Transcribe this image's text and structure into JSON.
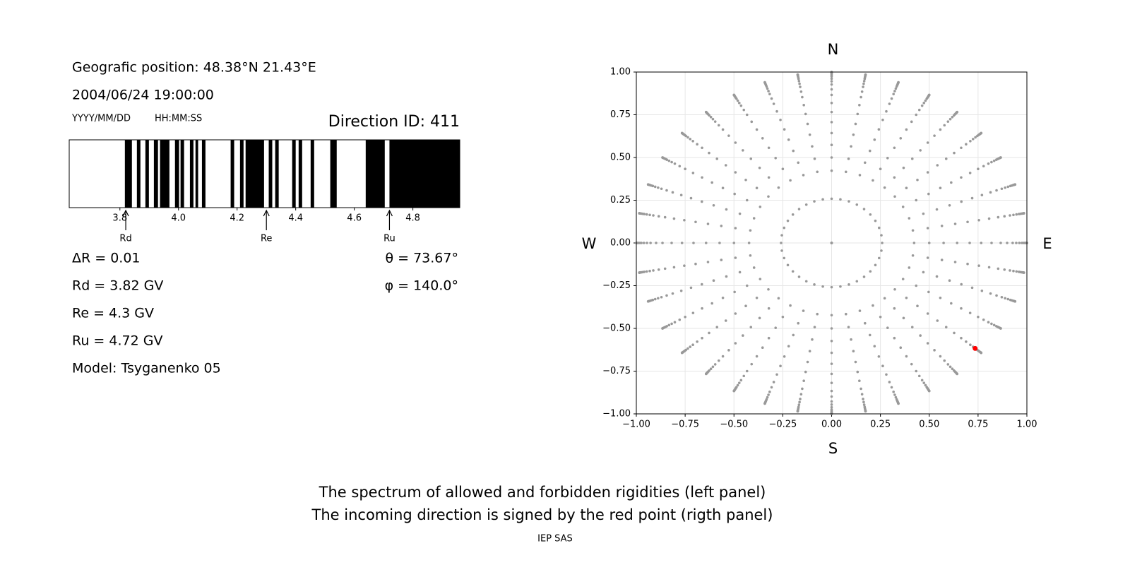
{
  "info": {
    "position": "Geografic position: 48.38°N 21.43°E",
    "datetime": "2004/06/24 19:00:00",
    "date_format": "YYYY/MM/DD",
    "time_format": "HH:MM:SS",
    "direction_id": "Direction ID: 411",
    "delta_r": "ΔR = 0.01",
    "rd": "Rd = 3.82 GV",
    "re": "Re = 4.3 GV",
    "ru": "Ru = 4.72 GV",
    "model": "Model: Tsyganenko 05",
    "theta": "θ = 73.67°",
    "phi": "φ = 140.0°"
  },
  "chart_data": [
    {
      "type": "spectrum",
      "color": "#000000",
      "xlim": [
        3.627,
        4.96
      ],
      "xticks": [
        3.8,
        {
          "value": 4,
          "label": "4.0"
        },
        4.2,
        4.4,
        4.6,
        4.8
      ],
      "forbidden": [
        [
          3.817,
          3.841
        ],
        [
          3.858,
          3.87
        ],
        [
          3.887,
          3.899
        ],
        [
          3.916,
          3.93
        ],
        [
          3.937,
          3.969
        ],
        [
          3.988,
          4.002
        ],
        [
          4.007,
          4.019
        ],
        [
          4.039,
          4.051
        ],
        [
          4.058,
          4.067
        ],
        [
          4.08,
          4.092
        ],
        [
          4.178,
          4.19
        ],
        [
          4.21,
          4.222
        ],
        [
          4.229,
          4.292
        ],
        [
          4.308,
          4.32
        ],
        [
          4.33,
          4.342
        ],
        [
          4.388,
          4.4
        ],
        [
          4.41,
          4.422
        ],
        [
          4.451,
          4.463
        ],
        [
          4.518,
          4.54
        ],
        [
          4.639,
          4.704
        ],
        [
          4.72,
          4.96
        ]
      ],
      "markers": [
        {
          "label": "Rd",
          "value": 3.82
        },
        {
          "label": "Re",
          "value": 4.3
        },
        {
          "label": "Ru",
          "value": 4.72
        }
      ]
    },
    {
      "type": "scatter",
      "color": "#999999",
      "grid": true,
      "xlim": [
        -1,
        1
      ],
      "ylim": [
        -1,
        1
      ],
      "xticks": [
        {
          "value": -1,
          "label": "−1.00"
        },
        {
          "value": -0.75,
          "label": "−0.75"
        },
        {
          "value": -0.5,
          "label": "−0.50"
        },
        {
          "value": -0.25,
          "label": "−0.25"
        },
        {
          "value": 0,
          "label": "0.00"
        },
        {
          "value": 0.25,
          "label": "0.25"
        },
        {
          "value": 0.5,
          "label": "0.50"
        },
        {
          "value": 0.75,
          "label": "0.75"
        },
        {
          "value": 1,
          "label": "1.00"
        }
      ],
      "yticks": [
        {
          "value": -1,
          "label": "−1.00"
        },
        {
          "value": -0.75,
          "label": "−0.75"
        },
        {
          "value": -0.5,
          "label": "−0.50"
        },
        {
          "value": -0.25,
          "label": "−0.25"
        },
        {
          "value": 0,
          "label": "0.00"
        },
        {
          "value": 0.25,
          "label": "0.25"
        },
        {
          "value": 0.5,
          "label": "0.50"
        },
        {
          "value": 0.75,
          "label": "0.75"
        },
        {
          "value": 1,
          "label": "1.00"
        }
      ],
      "compass": {
        "n": "N",
        "s": "S",
        "w": "W",
        "e": "E"
      },
      "points": {
        "theta": [
          0,
          15,
          25,
          30,
          35,
          40,
          45,
          50,
          55,
          60,
          64,
          68,
          71,
          74,
          77,
          79,
          81,
          83,
          85,
          87,
          89,
          90
        ],
        "phi": [
          0,
          10,
          20,
          30,
          40,
          50,
          60,
          70,
          80,
          90,
          100,
          110,
          120,
          130,
          140,
          150,
          160,
          170,
          180,
          190,
          200,
          210,
          220,
          230,
          240,
          250,
          260,
          270,
          280,
          290,
          300,
          310,
          320,
          330,
          340,
          350
        ]
      },
      "highlight": {
        "x": 0.735,
        "y": -0.617,
        "color": "#ff0000"
      }
    }
  ],
  "footer": {
    "line1": "The spectrum of allowed and forbidden rigidities (left panel)",
    "line2": "The incoming direction is signed by the red point (rigth panel)",
    "credit": "IEP SAS"
  }
}
